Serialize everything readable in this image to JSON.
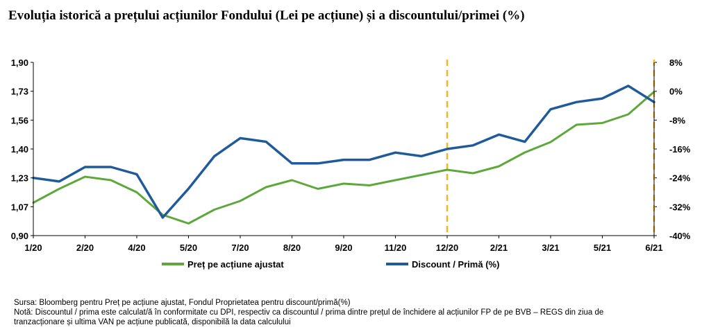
{
  "title": "Evoluția istorică a prețului acțiunilor Fondului (Lei pe acțiune) și a discountului/primei (%)",
  "colors": {
    "price": "#5ea83b",
    "discount": "#1f5a9a",
    "marker": "#f5b423",
    "axis": "#000000"
  },
  "chart_data": {
    "type": "line",
    "x_ticks": [
      "1/20",
      "2/20",
      "4/20",
      "5/20",
      "7/20",
      "8/20",
      "9/20",
      "11/20",
      "12/20",
      "2/21",
      "3/21",
      "5/21",
      "6/21"
    ],
    "y_left_ticks": [
      "1,90",
      "1,73",
      "1,56",
      "1,40",
      "1,23",
      "1,07",
      "0,90"
    ],
    "y_right_ticks": [
      "8%",
      "0%",
      "-8%",
      "-16%",
      "-24%",
      "-32%",
      "-40%"
    ],
    "ylim_left": [
      0.9,
      1.9
    ],
    "ylim_right": [
      -40,
      8
    ],
    "vertical_markers": [
      "12/20",
      "6/21"
    ],
    "legend_position": "bottom",
    "series": [
      {
        "name": "Preț pe acțiune ajustat",
        "axis": "left",
        "x": [
          0,
          0.5,
          1,
          1.5,
          2,
          2.5,
          3,
          3.5,
          4,
          4.5,
          5,
          5.5,
          6,
          6.5,
          7,
          7.5,
          8,
          8.5,
          9,
          9.5,
          10,
          10.5,
          11,
          11.5,
          12
        ],
        "values": [
          1.09,
          1.17,
          1.24,
          1.22,
          1.15,
          1.02,
          0.97,
          1.05,
          1.1,
          1.18,
          1.22,
          1.17,
          1.2,
          1.19,
          1.22,
          1.25,
          1.28,
          1.26,
          1.3,
          1.38,
          1.44,
          1.54,
          1.55,
          1.6,
          1.73
        ]
      },
      {
        "name": "Discount / Primă (%)",
        "axis": "right",
        "x": [
          0,
          0.5,
          1,
          1.5,
          2,
          2.5,
          3,
          3.5,
          4,
          4.5,
          5,
          5.5,
          6,
          6.5,
          7,
          7.5,
          8,
          8.5,
          9,
          9.5,
          10,
          10.5,
          11,
          11.5,
          12
        ],
        "values": [
          -24,
          -25,
          -21,
          -21,
          -23,
          -35,
          -27,
          -18,
          -13,
          -14,
          -20,
          -20,
          -19,
          -19,
          -17,
          -18,
          -16,
          -15,
          -12,
          -14,
          -5,
          -3,
          -2,
          1.5,
          -3
        ]
      }
    ]
  },
  "legend": {
    "price": "Preț pe acțiune ajustat",
    "discount": "Discount / Primă (%)"
  },
  "notes": {
    "source": "Sursa: Bloomberg pentru Preț pe acțiune ajustat, Fondul Proprietatea pentru discount/primă(%)",
    "note_line1": "Notă: Discountul / prima este calculat/ă în conformitate cu DPI, respectiv ca discountul / prima dintre prețul de închidere al acțiunilor FP de pe BVB – REGS din ziua de",
    "note_line2": "tranzacționare și ultima VAN pe acțiune publicată, disponibilă la data calculului"
  }
}
